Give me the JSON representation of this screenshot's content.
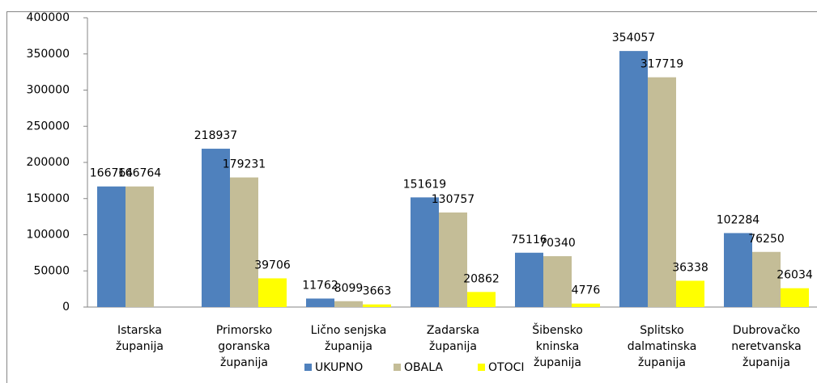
{
  "chart_data": {
    "type": "bar",
    "categories": [
      [
        "Istarska",
        "županija"
      ],
      [
        "Primorsko",
        "goranska",
        "županija"
      ],
      [
        "Lično senjska",
        "županija"
      ],
      [
        "Zadarska",
        "županija"
      ],
      [
        "Šibensko",
        "kninska",
        "županija"
      ],
      [
        "Splitsko",
        "dalmatinska",
        "županija"
      ],
      [
        "Dubrovačko",
        "neretvanska",
        "županija"
      ]
    ],
    "series": [
      {
        "name": "UKUPNO",
        "color": "#4f81bd",
        "values": [
          166764,
          218937,
          11762,
          151619,
          75116,
          354057,
          102284
        ]
      },
      {
        "name": "OBALA",
        "color": "#c4bd97",
        "values": [
          166764,
          179231,
          8099,
          130757,
          70340,
          317719,
          76250
        ]
      },
      {
        "name": "OTOCI",
        "color": "#ffff00",
        "values": [
          null,
          39706,
          3663,
          20862,
          4776,
          36338,
          26034
        ]
      }
    ],
    "ylim": [
      0,
      400000
    ],
    "yticks": [
      0,
      50000,
      100000,
      150000,
      200000,
      250000,
      300000,
      350000,
      400000
    ],
    "grid": false,
    "legend": "bottom"
  }
}
